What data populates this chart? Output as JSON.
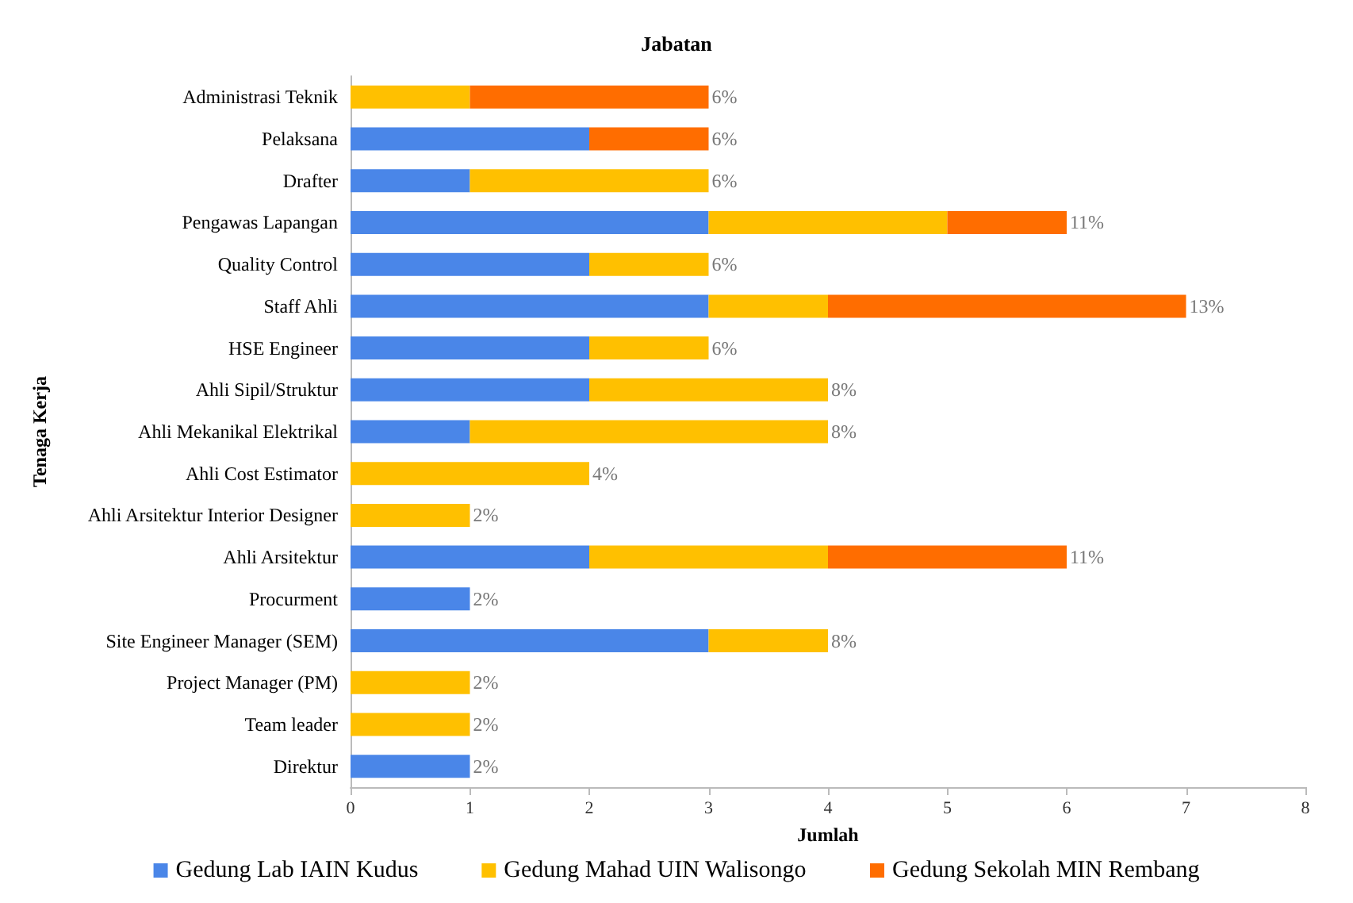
{
  "chart_data": {
    "type": "bar",
    "orientation": "horizontal",
    "stacked": true,
    "title": "Jabatan",
    "xlabel": "Jumlah",
    "ylabel": "Tenaga Kerja",
    "categories": [
      "Administrasi Teknik",
      "Pelaksana",
      "Drafter",
      "Pengawas Lapangan",
      "Quality Control",
      "Staff Ahli",
      "HSE Engineer",
      "Ahli Sipil/Struktur",
      "Ahli Mekanikal Elektrikal",
      "Ahli Cost Estimator",
      "Ahli Arsitektur Interior Designer",
      "Ahli Arsitektur",
      "Procurment",
      "Site Engineer Manager (SEM)",
      "Project Manager (PM)",
      "Team leader",
      "Direktur"
    ],
    "series": [
      {
        "name": "Gedung Lab IAIN Kudus",
        "color": "#4a86e8",
        "values": [
          0,
          2,
          1,
          3,
          2,
          3,
          2,
          2,
          1,
          0,
          0,
          2,
          1,
          3,
          0,
          0,
          1
        ]
      },
      {
        "name": "Gedung Mahad UIN Walisongo",
        "color": "#ffc000",
        "values": [
          1,
          0,
          2,
          2,
          1,
          1,
          1,
          2,
          3,
          2,
          1,
          2,
          0,
          1,
          1,
          1,
          0
        ]
      },
      {
        "name": "Gedung Sekolah MIN Rembang",
        "color": "#ff6d00",
        "values": [
          2,
          1,
          0,
          1,
          0,
          3,
          0,
          0,
          0,
          0,
          0,
          2,
          0,
          0,
          0,
          0,
          0
        ]
      }
    ],
    "annotations": [
      {
        "text": "6%",
        "x": 3,
        "y": "Administrasi Teknik"
      },
      {
        "text": "6%",
        "x": 3,
        "y": "Pelaksana"
      },
      {
        "text": "6%",
        "x": 3,
        "y": "Drafter"
      },
      {
        "text": "11%",
        "x": 6,
        "y": "Pengawas Lapangan"
      },
      {
        "text": "6%",
        "x": 3,
        "y": "Quality Control"
      },
      {
        "text": "13%",
        "x": 7,
        "y": "Staff Ahli"
      },
      {
        "text": "6%",
        "x": 3,
        "y": "HSE Engineer"
      },
      {
        "text": "8%",
        "x": 4,
        "y": "Ahli Sipil/Struktur"
      },
      {
        "text": "8%",
        "x": 4,
        "y": "Ahli Mekanikal Elektrikal"
      },
      {
        "text": "4%",
        "x": 2,
        "y": "Ahli Cost Estimator"
      },
      {
        "text": "2%",
        "x": 1,
        "y": "Ahli Arsitektur Interior Designer"
      },
      {
        "text": "11%",
        "x": 6,
        "y": "Ahli Arsitektur"
      },
      {
        "text": "2%",
        "x": 1,
        "y": "Procurment"
      },
      {
        "text": "8%",
        "x": 4,
        "y": "Site Engineer Manager (SEM)"
      },
      {
        "text": "2%",
        "x": 1,
        "y": "Project Manager (PM)"
      },
      {
        "text": "2%",
        "x": 1,
        "y": "Team leader"
      },
      {
        "text": "2%",
        "x": 1,
        "y": "Direktur"
      }
    ],
    "xlim": [
      0,
      8
    ],
    "xticks": [
      0,
      1,
      2,
      3,
      4,
      5,
      6,
      7,
      8
    ],
    "grid": false,
    "legend": "bottom"
  }
}
